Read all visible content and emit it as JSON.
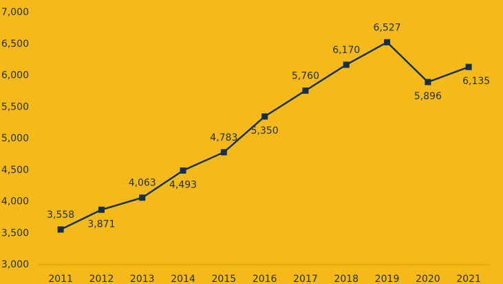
{
  "chart_data": {
    "type": "line",
    "categories": [
      "2011",
      "2012",
      "2013",
      "2014",
      "2015",
      "2016",
      "2017",
      "2018",
      "2019",
      "2020",
      "2021"
    ],
    "values": [
      3558,
      3871,
      4063,
      4493,
      4783,
      5350,
      5760,
      6170,
      6527,
      5896,
      6135
    ],
    "value_labels": [
      "3,558",
      "3,871",
      "4,063",
      "4,493",
      "4,783",
      "5,350",
      "5,760",
      "6,170",
      "6,527",
      "5,896",
      "6,135"
    ],
    "color": "#12304a",
    "ylim": [
      3000,
      7000
    ],
    "yticks": [
      {
        "value": 3000,
        "label": "3,000"
      },
      {
        "value": 3500,
        "label": "3,500"
      },
      {
        "value": 4000,
        "label": "4,000"
      },
      {
        "value": 4500,
        "label": "4,500"
      },
      {
        "value": 5000,
        "label": "5,000"
      },
      {
        "value": 5500,
        "label": "5,500"
      },
      {
        "value": 6000,
        "label": "6,000"
      },
      {
        "value": 6500,
        "label": "6,500"
      },
      {
        "value": 7000,
        "label": "7,000"
      }
    ],
    "grid": false
  }
}
